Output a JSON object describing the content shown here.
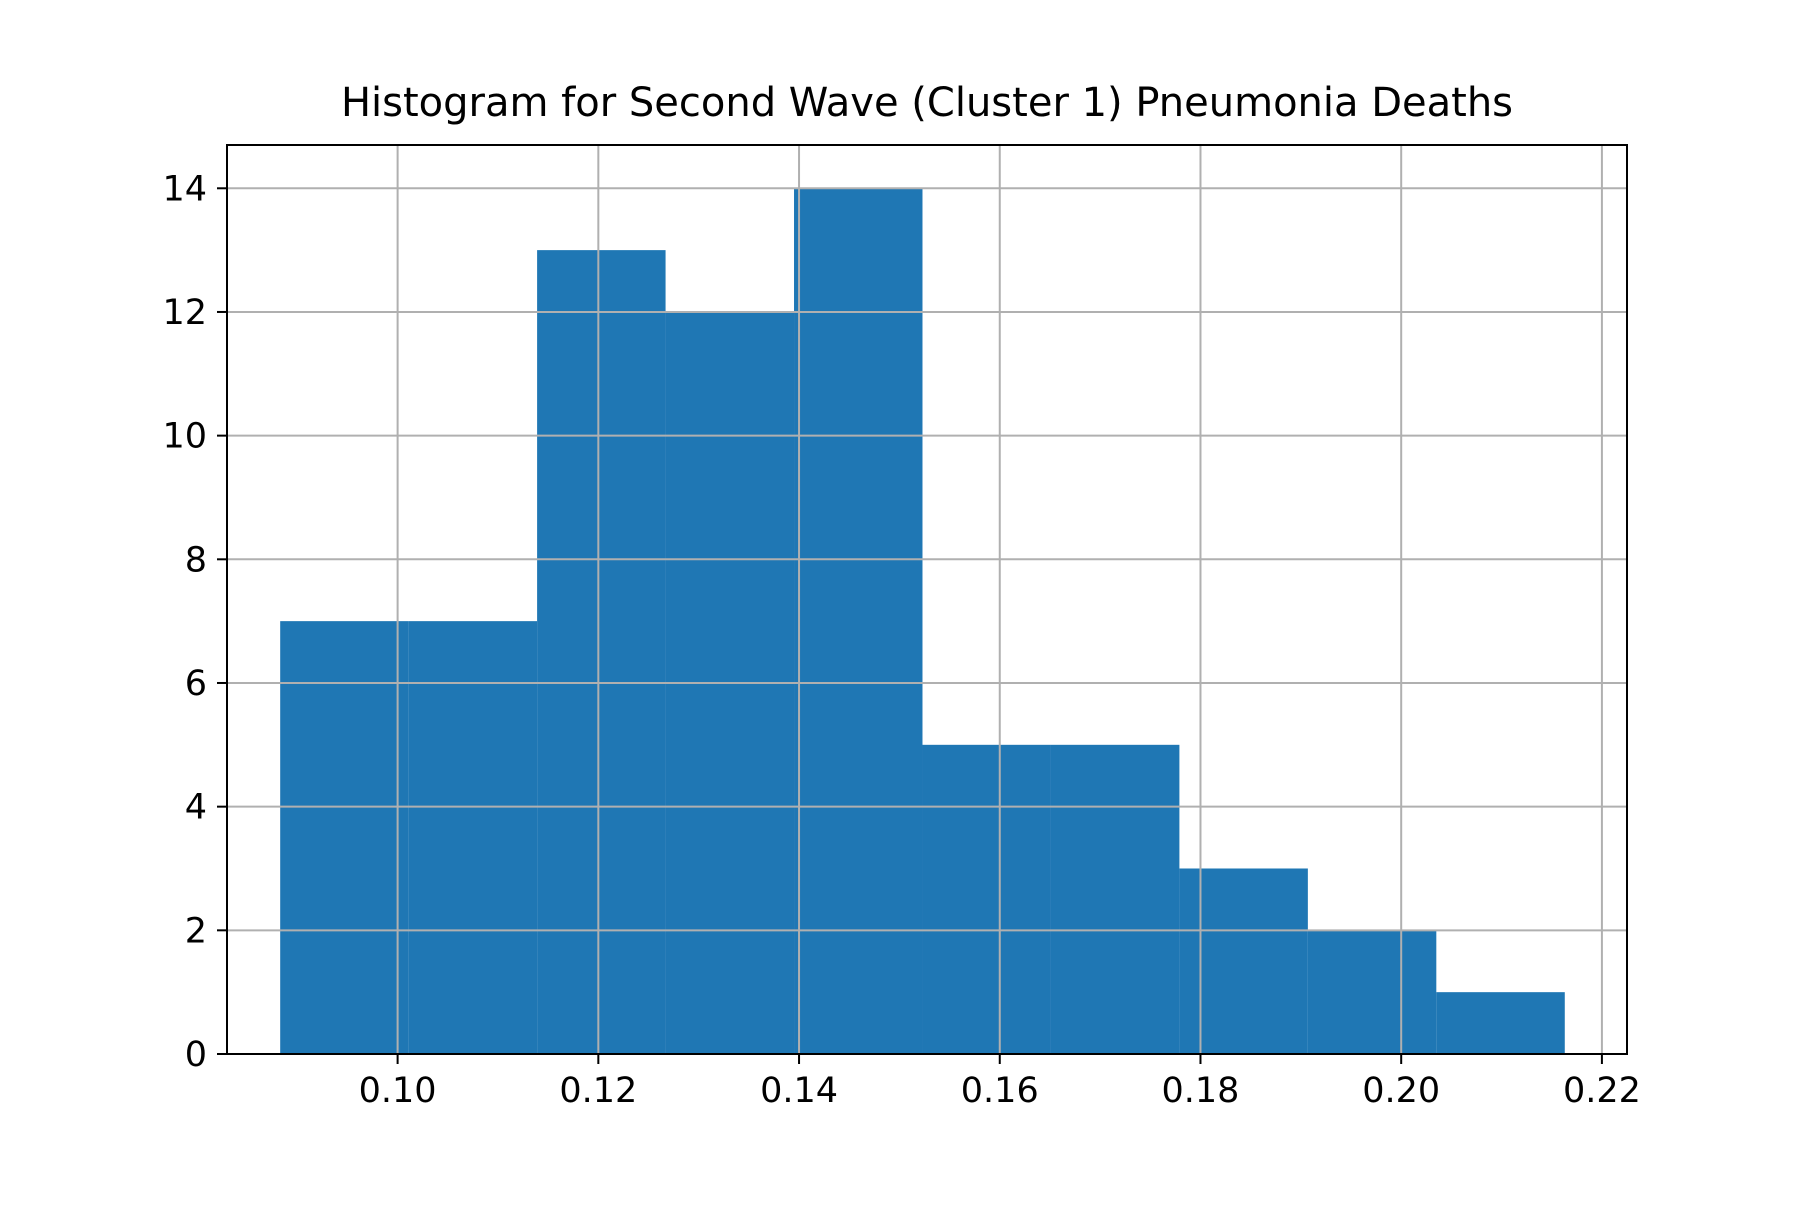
{
  "chart_data": {
    "type": "bar",
    "title": "Histogram for Second Wave (Cluster 1) Pneumonia Deaths",
    "xlabel": "",
    "ylabel": "",
    "bin_edges": [
      0.0883,
      0.1011,
      0.1139,
      0.1267,
      0.1395,
      0.1523,
      0.1651,
      0.1779,
      0.1907,
      0.2035,
      0.2163
    ],
    "values": [
      7,
      7,
      13,
      12,
      14,
      5,
      5,
      3,
      2,
      1
    ],
    "xlim": [
      0.083,
      0.2225
    ],
    "ylim": [
      0,
      14.7
    ],
    "xticks": [
      0.1,
      0.12,
      0.14,
      0.16,
      0.18,
      0.2,
      0.22
    ],
    "xtick_labels": [
      "0.10",
      "0.12",
      "0.14",
      "0.16",
      "0.18",
      "0.20",
      "0.22"
    ],
    "yticks": [
      0,
      2,
      4,
      6,
      8,
      10,
      12,
      14
    ],
    "ytick_labels": [
      "0",
      "2",
      "4",
      "6",
      "8",
      "10",
      "12",
      "14"
    ],
    "grid": true,
    "legend": "none",
    "bar_color": "#1f77b4",
    "grid_color": "#b0b0b0"
  }
}
